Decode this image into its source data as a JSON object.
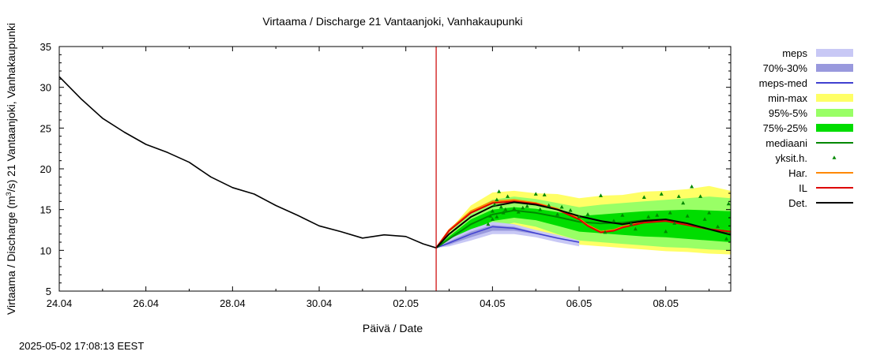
{
  "chart_data": {
    "type": "area",
    "title": "Virtaama / Discharge  21 Vantaanjoki, Vanhakaupunki",
    "xlabel": "Päivä / Date",
    "ylabel_main": "Virtaama / Discharge (m",
    "ylabel_sup": "3",
    "ylabel_rest": "/s)  21 Vantaanjoki, Vanhakaupunki",
    "timestamp": "2025-05-02 17:08:13 EEST",
    "xlim": [
      0,
      15.5
    ],
    "ylim": [
      5,
      35
    ],
    "x_ticks": [
      {
        "x": 0,
        "label": "24.04"
      },
      {
        "x": 2,
        "label": "26.04"
      },
      {
        "x": 4,
        "label": "28.04"
      },
      {
        "x": 6,
        "label": "30.04"
      },
      {
        "x": 8,
        "label": "02.05"
      },
      {
        "x": 10,
        "label": "04.05"
      },
      {
        "x": 12,
        "label": "06.05"
      },
      {
        "x": 14,
        "label": "08.05"
      }
    ],
    "y_ticks": [
      {
        "y": 5,
        "label": "5"
      },
      {
        "y": 10,
        "label": "10"
      },
      {
        "y": 15,
        "label": "15"
      },
      {
        "y": 20,
        "label": "20"
      },
      {
        "y": 25,
        "label": "25"
      },
      {
        "y": 30,
        "label": "30"
      },
      {
        "y": 35,
        "label": "35"
      }
    ],
    "forecast_start_x": 8.7,
    "legend": [
      {
        "label": "meps",
        "kind": "box",
        "color": "#c8c8f5"
      },
      {
        "label": "70%-30%",
        "kind": "box",
        "color": "#9999dd"
      },
      {
        "label": "meps-med",
        "kind": "line",
        "color": "#4040d0"
      },
      {
        "label": "min-max",
        "kind": "box",
        "color": "#ffff66"
      },
      {
        "label": "95%-5%",
        "kind": "box",
        "color": "#99ff66"
      },
      {
        "label": "75%-25%",
        "kind": "box",
        "color": "#00dd00"
      },
      {
        "label": "mediaani",
        "kind": "line",
        "color": "#008800"
      },
      {
        "label": "yksit.h.",
        "kind": "dot",
        "color": "#008800"
      },
      {
        "label": "Har.",
        "kind": "line",
        "color": "#ff8800"
      },
      {
        "label": "IL",
        "kind": "line",
        "color": "#dd0000"
      },
      {
        "label": "Det.",
        "kind": "line",
        "color": "#000000"
      }
    ],
    "observed": {
      "name": "Det.",
      "color": "#000000",
      "x": [
        0,
        0.5,
        1,
        1.5,
        2,
        2.5,
        3,
        3.5,
        4,
        4.5,
        5,
        5.5,
        6,
        6.5,
        7,
        7.5,
        8,
        8.4,
        8.7
      ],
      "y": [
        31.3,
        28.6,
        26.2,
        24.5,
        23.0,
        22.0,
        20.8,
        19.0,
        17.7,
        16.9,
        15.5,
        14.3,
        13.0,
        12.3,
        11.5,
        11.9,
        11.7,
        10.8,
        10.3
      ]
    },
    "bands": [
      {
        "name": "min-max",
        "color": "#ffff66",
        "x": [
          8.7,
          9.0,
          9.5,
          10.0,
          10.5,
          11.0,
          11.5,
          12.0,
          12.5,
          13.0,
          13.5,
          14.0,
          14.5,
          15.0,
          15.5
        ],
        "low": [
          10.3,
          10.6,
          11.5,
          12.5,
          13.0,
          12.5,
          11.5,
          10.7,
          10.5,
          10.3,
          10.1,
          9.9,
          9.8,
          9.6,
          9.5
        ],
        "high": [
          10.3,
          12.4,
          15.5,
          17.1,
          17.3,
          17.0,
          16.9,
          16.4,
          16.7,
          16.8,
          17.2,
          17.3,
          17.5,
          17.9,
          17.3
        ]
      },
      {
        "name": "95%-5%",
        "color": "#99ff66",
        "x": [
          8.7,
          9.0,
          9.5,
          10.0,
          10.5,
          11.0,
          11.5,
          12.0,
          12.5,
          13.0,
          13.5,
          14.0,
          14.5,
          15.0,
          15.5
        ],
        "low": [
          10.3,
          10.8,
          11.8,
          12.8,
          13.4,
          12.9,
          12.0,
          11.2,
          11.0,
          10.8,
          10.6,
          10.4,
          10.3,
          10.1,
          10.0
        ],
        "high": [
          10.3,
          12.1,
          14.8,
          16.2,
          16.6,
          16.3,
          15.8,
          15.3,
          15.6,
          15.8,
          16.0,
          16.2,
          16.4,
          16.6,
          16.4
        ]
      },
      {
        "name": "75%-25%",
        "color": "#00dd00",
        "x": [
          8.7,
          9.0,
          9.5,
          10.0,
          10.5,
          11.0,
          11.5,
          12.0,
          12.5,
          13.0,
          13.5,
          14.0,
          14.5,
          15.0,
          15.5
        ],
        "low": [
          10.3,
          11.1,
          12.4,
          13.6,
          14.0,
          13.7,
          13.0,
          12.3,
          12.1,
          11.9,
          11.7,
          11.6,
          11.4,
          11.2,
          11.0
        ],
        "high": [
          10.3,
          11.7,
          13.8,
          15.0,
          15.3,
          15.1,
          14.7,
          14.2,
          14.4,
          14.6,
          14.8,
          14.9,
          15.0,
          14.9,
          14.8
        ]
      },
      {
        "name": "meps",
        "color": "#c8c8f5",
        "x": [
          8.7,
          9.0,
          9.5,
          10.0,
          10.5,
          11.0,
          11.5,
          12.0
        ],
        "low": [
          10.3,
          10.5,
          11.2,
          12.0,
          12.0,
          11.6,
          11.0,
          10.5
        ],
        "high": [
          10.3,
          11.4,
          12.6,
          13.5,
          13.2,
          12.5,
          11.9,
          11.2
        ]
      },
      {
        "name": "70%-30%",
        "color": "#9999dd",
        "x": [
          8.7,
          9.0,
          9.5,
          10.0,
          10.5,
          11.0,
          11.5,
          12.0
        ],
        "low": [
          10.3,
          10.7,
          11.6,
          12.4,
          12.4,
          12.0,
          11.4,
          10.9
        ],
        "high": [
          10.3,
          11.1,
          12.3,
          13.1,
          12.9,
          12.2,
          11.6,
          11.0
        ]
      }
    ],
    "lines": [
      {
        "name": "meps-med",
        "color": "#4040d0",
        "width": 1.5,
        "x": [
          8.7,
          9.0,
          9.5,
          10.0,
          10.5,
          11.0,
          11.5,
          12.0
        ],
        "y": [
          10.3,
          10.9,
          12.0,
          12.9,
          12.7,
          12.1,
          11.5,
          11.0
        ]
      },
      {
        "name": "mediaani",
        "color": "#008800",
        "width": 2,
        "x": [
          8.7,
          9.0,
          9.5,
          10.0,
          10.5,
          11.0,
          11.5,
          12.0,
          12.5,
          13.0,
          13.5,
          14.0,
          14.5,
          15.0,
          15.5
        ],
        "y": [
          10.3,
          11.4,
          13.2,
          14.4,
          14.9,
          14.6,
          14.1,
          13.5,
          13.3,
          13.4,
          13.7,
          13.8,
          13.2,
          12.6,
          12.2
        ]
      },
      {
        "name": "Har.",
        "color": "#ff8800",
        "width": 2,
        "x": [
          8.7,
          9.0,
          9.5,
          10.0,
          10.5,
          11.0,
          11.5,
          12.0,
          12.2,
          12.5,
          12.8,
          13.0,
          13.5,
          14.0,
          14.5,
          15.0,
          15.5
        ],
        "y": [
          10.3,
          12.5,
          14.8,
          16.0,
          16.2,
          15.8,
          15.1,
          13.9,
          13.1,
          12.3,
          12.5,
          12.9,
          13.5,
          13.7,
          13.2,
          12.6,
          12.3
        ]
      },
      {
        "name": "IL",
        "color": "#dd0000",
        "width": 2,
        "x": [
          8.7,
          9.0,
          9.5,
          10.0,
          10.5,
          11.0,
          11.5,
          12.0,
          12.2,
          12.5,
          12.8,
          13.0,
          13.5,
          14.0,
          14.5,
          15.0,
          15.5
        ],
        "y": [
          10.3,
          12.4,
          14.6,
          15.8,
          16.0,
          15.7,
          15.0,
          13.8,
          13.0,
          12.2,
          12.4,
          12.8,
          13.4,
          13.6,
          13.1,
          12.6,
          12.3
        ]
      },
      {
        "name": "Det.",
        "color": "#000000",
        "width": 2,
        "x": [
          8.7,
          9.0,
          9.5,
          10.0,
          10.5,
          11.0,
          11.5,
          12.0,
          12.5,
          13.0,
          13.5,
          14.0,
          14.5,
          15.0,
          15.5
        ],
        "y": [
          10.3,
          12.0,
          14.1,
          15.4,
          15.9,
          15.6,
          15.0,
          14.2,
          13.6,
          13.2,
          13.6,
          13.8,
          13.3,
          12.6,
          11.9
        ]
      }
    ],
    "scatter": {
      "name": "yksit.h.",
      "color": "#008800",
      "points": [
        [
          9.9,
          13.2
        ],
        [
          9.95,
          14.2
        ],
        [
          10.0,
          14.8
        ],
        [
          10.05,
          15.6
        ],
        [
          10.1,
          16.2
        ],
        [
          10.15,
          17.2
        ],
        [
          10.2,
          15.3
        ],
        [
          10.25,
          14.6
        ],
        [
          10.0,
          13.8
        ],
        [
          10.1,
          14.1
        ],
        [
          10.3,
          15.0
        ],
        [
          10.35,
          16.6
        ],
        [
          10.5,
          15.1
        ],
        [
          10.6,
          14.7
        ],
        [
          10.7,
          15.2
        ],
        [
          10.8,
          15.4
        ],
        [
          11.0,
          16.9
        ],
        [
          11.1,
          15.0
        ],
        [
          11.2,
          16.8
        ],
        [
          11.3,
          15.5
        ],
        [
          11.5,
          14.4
        ],
        [
          11.6,
          15.3
        ],
        [
          11.8,
          14.9
        ],
        [
          12.0,
          14.1
        ],
        [
          12.2,
          14.4
        ],
        [
          12.5,
          16.7
        ],
        [
          12.6,
          12.2
        ],
        [
          12.8,
          13.6
        ],
        [
          13.0,
          14.3
        ],
        [
          13.2,
          13.2
        ],
        [
          13.3,
          12.6
        ],
        [
          13.5,
          16.5
        ],
        [
          13.6,
          14.1
        ],
        [
          13.8,
          14.3
        ],
        [
          13.9,
          16.9
        ],
        [
          14.0,
          12.3
        ],
        [
          14.1,
          14.6
        ],
        [
          14.2,
          13.3
        ],
        [
          14.3,
          16.6
        ],
        [
          14.4,
          15.8
        ],
        [
          14.5,
          14.2
        ],
        [
          14.6,
          17.8
        ],
        [
          14.8,
          16.6
        ],
        [
          14.9,
          13.8
        ],
        [
          15.0,
          14.6
        ],
        [
          15.2,
          12.9
        ],
        [
          15.4,
          11.4
        ],
        [
          15.45,
          15.7
        ]
      ]
    }
  }
}
